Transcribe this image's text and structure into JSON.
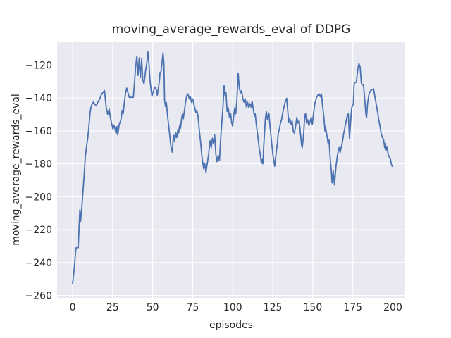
{
  "chart_data": {
    "type": "line",
    "title": "moving_average_rewards_eval of DDPG",
    "xlabel": "episodes",
    "ylabel": "moving_average_rewards_eval",
    "x_ticks": [
      0,
      25,
      50,
      75,
      100,
      125,
      150,
      175,
      200
    ],
    "y_ticks": [
      -120,
      -140,
      -160,
      -180,
      -200,
      -220,
      -240,
      -260
    ],
    "xlim": [
      -9.7,
      207.7
    ],
    "ylim": [
      -261.5,
      -105.7
    ],
    "grid": true,
    "legend_position": "none",
    "style": {
      "figure_background": "#ffffff",
      "plot_background": "#e9e9f2",
      "grid_color": "#ffffff",
      "line_color": "#4c72b0",
      "text_color": "#262626"
    },
    "series": [
      {
        "name": "moving_average_rewards_eval",
        "color": "#4c72b0",
        "points": [
          [
            0,
            -253
          ],
          [
            1,
            -244
          ],
          [
            2,
            -232
          ],
          [
            2.3,
            -231
          ],
          [
            3.5,
            -231
          ],
          [
            4.5,
            -208
          ],
          [
            5,
            -215
          ],
          [
            6,
            -203
          ],
          [
            7,
            -190
          ],
          [
            8,
            -175
          ],
          [
            8.9,
            -168
          ],
          [
            9.4,
            -165
          ],
          [
            10,
            -159
          ],
          [
            10.9,
            -149
          ],
          [
            11.4,
            -146
          ],
          [
            12,
            -144
          ],
          [
            13,
            -142.5
          ],
          [
            14,
            -144
          ],
          [
            14.8,
            -144.7
          ],
          [
            15.5,
            -143
          ],
          [
            17,
            -140.4
          ],
          [
            18,
            -138
          ],
          [
            19,
            -136.5
          ],
          [
            19.9,
            -135.5
          ],
          [
            20.5,
            -141
          ],
          [
            21,
            -146
          ],
          [
            21.9,
            -150
          ],
          [
            22.8,
            -146.8
          ],
          [
            23.6,
            -152
          ],
          [
            24.5,
            -156
          ],
          [
            25.2,
            -158.9
          ],
          [
            25.8,
            -156.5
          ],
          [
            26.5,
            -159
          ],
          [
            27.2,
            -161.7
          ],
          [
            27.7,
            -157.4
          ],
          [
            28.2,
            -162.4
          ],
          [
            29.1,
            -156
          ],
          [
            30.2,
            -153.2
          ],
          [
            30.9,
            -147.5
          ],
          [
            31.6,
            -149.6
          ],
          [
            32.4,
            -141.8
          ],
          [
            33.1,
            -136.8
          ],
          [
            33.8,
            -134
          ],
          [
            34.6,
            -136.8
          ],
          [
            35.3,
            -139.6
          ],
          [
            37.9,
            -139.6
          ],
          [
            38.7,
            -130
          ],
          [
            39.3,
            -122
          ],
          [
            40.1,
            -114.5
          ],
          [
            40.9,
            -126.3
          ],
          [
            41.6,
            -115.6
          ],
          [
            42.3,
            -127.7
          ],
          [
            43.1,
            -116.3
          ],
          [
            43.8,
            -129.1
          ],
          [
            44.6,
            -131.5
          ],
          [
            45.5,
            -124.1
          ],
          [
            46.3,
            -119.1
          ],
          [
            47,
            -112
          ],
          [
            47.8,
            -121.3
          ],
          [
            48.3,
            -129.1
          ],
          [
            49,
            -135
          ],
          [
            49.6,
            -139
          ],
          [
            50.2,
            -136.5
          ],
          [
            51,
            -134.5
          ],
          [
            51.5,
            -133.3
          ],
          [
            52.3,
            -135
          ],
          [
            52.9,
            -138.3
          ],
          [
            53.6,
            -134
          ],
          [
            54.3,
            -129
          ],
          [
            54.6,
            -124.5
          ],
          [
            55.2,
            -124
          ],
          [
            56,
            -117
          ],
          [
            56.5,
            -112.6
          ],
          [
            57,
            -119.1
          ],
          [
            57.4,
            -141.2
          ],
          [
            58,
            -145.2
          ],
          [
            58.6,
            -142.9
          ],
          [
            59.3,
            -151
          ],
          [
            60.4,
            -160.3
          ],
          [
            61.4,
            -169.8
          ],
          [
            62.3,
            -173
          ],
          [
            62.8,
            -164.8
          ],
          [
            63.3,
            -162.7
          ],
          [
            63.7,
            -166.3
          ],
          [
            64.5,
            -161.3
          ],
          [
            65,
            -164.1
          ],
          [
            65.8,
            -159.1
          ],
          [
            66.2,
            -161.3
          ],
          [
            66.9,
            -156.3
          ],
          [
            67.4,
            -158.4
          ],
          [
            68.1,
            -152
          ],
          [
            68.7,
            -149.8
          ],
          [
            69.1,
            -152.7
          ],
          [
            70,
            -146.5
          ],
          [
            70.6,
            -142
          ],
          [
            71.3,
            -138.5
          ],
          [
            72.1,
            -137.5
          ],
          [
            72.8,
            -140.6
          ],
          [
            73.5,
            -139.2
          ],
          [
            74.3,
            -142.7
          ],
          [
            75,
            -140.6
          ],
          [
            75.8,
            -144.2
          ],
          [
            77,
            -148.9
          ],
          [
            77.6,
            -147.5
          ],
          [
            78.3,
            -151
          ],
          [
            79.2,
            -160.3
          ],
          [
            80,
            -167.4
          ],
          [
            80.7,
            -175.2
          ],
          [
            81.4,
            -180.1
          ],
          [
            81.9,
            -183
          ],
          [
            82.5,
            -180
          ],
          [
            83.3,
            -185.1
          ],
          [
            84.4,
            -178
          ],
          [
            85.1,
            -173
          ],
          [
            85.8,
            -166
          ],
          [
            86.6,
            -170.3
          ],
          [
            87.3,
            -164.5
          ],
          [
            88,
            -167.5
          ],
          [
            88.7,
            -162.5
          ],
          [
            89.5,
            -174.5
          ],
          [
            90.2,
            -178.7
          ],
          [
            90.9,
            -175
          ],
          [
            91.7,
            -178
          ],
          [
            92.4,
            -166
          ],
          [
            93.1,
            -156
          ],
          [
            93.9,
            -145.4
          ],
          [
            94.6,
            -132.6
          ],
          [
            95.3,
            -139
          ],
          [
            95.8,
            -136.8
          ],
          [
            96.5,
            -148.2
          ],
          [
            97.2,
            -146.1
          ],
          [
            98,
            -151.8
          ],
          [
            98.7,
            -149.6
          ],
          [
            99.4,
            -155.3
          ],
          [
            99.9,
            -157
          ],
          [
            100.5,
            -151.8
          ],
          [
            101.2,
            -146.1
          ],
          [
            101.9,
            -149.6
          ],
          [
            102.6,
            -141
          ],
          [
            103.4,
            -124.8
          ],
          [
            104.1,
            -134
          ],
          [
            104.9,
            -136.9
          ],
          [
            105.6,
            -135.5
          ],
          [
            106.3,
            -140.4
          ],
          [
            107,
            -142.5
          ],
          [
            107.8,
            -140.4
          ],
          [
            108.5,
            -145.4
          ],
          [
            109.3,
            -142.5
          ],
          [
            110,
            -146
          ],
          [
            110.7,
            -143.5
          ],
          [
            111.4,
            -145.5
          ],
          [
            112.1,
            -142
          ],
          [
            112.5,
            -144.6
          ],
          [
            113.1,
            -148.2
          ],
          [
            113.5,
            -151
          ],
          [
            114,
            -149.6
          ],
          [
            114.7,
            -156
          ],
          [
            115.3,
            -160.3
          ],
          [
            116,
            -166
          ],
          [
            116.4,
            -169.6
          ],
          [
            117.2,
            -174.6
          ],
          [
            117.9,
            -179.6
          ],
          [
            118.3,
            -177.4
          ],
          [
            118.8,
            -180
          ],
          [
            119.3,
            -170.3
          ],
          [
            120,
            -158.9
          ],
          [
            120.4,
            -152.5
          ],
          [
            121,
            -148.2
          ],
          [
            121.6,
            -153.2
          ],
          [
            122.2,
            -150.3
          ],
          [
            122.6,
            -149.2
          ],
          [
            123.3,
            -157.4
          ],
          [
            123.9,
            -163.1
          ],
          [
            124.5,
            -168.9
          ],
          [
            125.1,
            -174.6
          ],
          [
            125.8,
            -178.9
          ],
          [
            126.2,
            -181.5
          ],
          [
            126.9,
            -175.3
          ],
          [
            127.4,
            -171
          ],
          [
            127.9,
            -167.4
          ],
          [
            128.4,
            -161.7
          ],
          [
            129.1,
            -158.9
          ],
          [
            129.8,
            -155.3
          ],
          [
            130.5,
            -153.2
          ],
          [
            131.2,
            -148.9
          ],
          [
            132,
            -145.4
          ],
          [
            133,
            -141.5
          ],
          [
            133.7,
            -140.2
          ],
          [
            134.3,
            -147
          ],
          [
            134.9,
            -154.6
          ],
          [
            135.6,
            -152.5
          ],
          [
            136.4,
            -156
          ],
          [
            137.1,
            -154
          ],
          [
            137.8,
            -160.3
          ],
          [
            138.5,
            -161.5
          ],
          [
            139.3,
            -156.7
          ],
          [
            140,
            -151.8
          ],
          [
            140.7,
            -155.3
          ],
          [
            141.5,
            -153.9
          ],
          [
            142.2,
            -161
          ],
          [
            143,
            -168.8
          ],
          [
            143.4,
            -170.2
          ],
          [
            144.3,
            -161.7
          ],
          [
            145,
            -150.4
          ],
          [
            145.5,
            -149.6
          ],
          [
            146.1,
            -155.3
          ],
          [
            146.8,
            -153.2
          ],
          [
            147.5,
            -156.7
          ],
          [
            148.3,
            -154.6
          ],
          [
            149,
            -151.8
          ],
          [
            149.7,
            -156
          ],
          [
            150.5,
            -149
          ],
          [
            151.3,
            -143.5
          ],
          [
            152.2,
            -140
          ],
          [
            153,
            -138.5
          ],
          [
            154,
            -137.5
          ],
          [
            154.7,
            -139.3
          ],
          [
            155.4,
            -137.6
          ],
          [
            156.1,
            -144.7
          ],
          [
            156.9,
            -151.8
          ],
          [
            157.6,
            -160.3
          ],
          [
            157.9,
            -157.4
          ],
          [
            159.1,
            -164.5
          ],
          [
            159.5,
            -167.4
          ],
          [
            160.1,
            -165.2
          ],
          [
            161,
            -178.7
          ],
          [
            161.6,
            -184.4
          ],
          [
            162,
            -191.5
          ],
          [
            162.8,
            -184.4
          ],
          [
            163.5,
            -192.8
          ],
          [
            164.5,
            -181.6
          ],
          [
            165.4,
            -174.5
          ],
          [
            166.4,
            -170.2
          ],
          [
            167.1,
            -173.1
          ],
          [
            168,
            -168.8
          ],
          [
            168.6,
            -166
          ],
          [
            169.3,
            -161.7
          ],
          [
            170,
            -158.2
          ],
          [
            170.7,
            -154.6
          ],
          [
            171.5,
            -151
          ],
          [
            172.2,
            -149.6
          ],
          [
            172.9,
            -164.5
          ],
          [
            173.4,
            -157.4
          ],
          [
            173.9,
            -150.4
          ],
          [
            174.3,
            -146.1
          ],
          [
            174.8,
            -144.7
          ],
          [
            175.3,
            -144
          ],
          [
            175.8,
            -131.2
          ],
          [
            176.5,
            -130.6
          ],
          [
            177.2,
            -130.4
          ],
          [
            178.1,
            -122.7
          ],
          [
            178.8,
            -119.1
          ],
          [
            179.6,
            -121.3
          ],
          [
            180.3,
            -130.6
          ],
          [
            180.7,
            -131.9
          ],
          [
            181.3,
            -131.9
          ],
          [
            181.7,
            -132.6
          ],
          [
            182.4,
            -140.4
          ],
          [
            183.2,
            -150.4
          ],
          [
            183.6,
            -151.8
          ],
          [
            184.2,
            -143.3
          ],
          [
            185.1,
            -137.6
          ],
          [
            186.1,
            -135.5
          ],
          [
            187.1,
            -134.8
          ],
          [
            188,
            -134.5
          ],
          [
            189,
            -140.4
          ],
          [
            189.8,
            -144.7
          ],
          [
            190.5,
            -148.9
          ],
          [
            191.2,
            -153.2
          ],
          [
            192,
            -157.4
          ],
          [
            192.7,
            -161.7
          ],
          [
            193.4,
            -163.8
          ],
          [
            194.2,
            -165.2
          ],
          [
            194.9,
            -170.2
          ],
          [
            195.3,
            -167.4
          ],
          [
            195.9,
            -171.6
          ],
          [
            196.4,
            -170
          ],
          [
            197.1,
            -174.5
          ],
          [
            197.8,
            -175.9
          ],
          [
            198.5,
            -177.3
          ],
          [
            199.2,
            -180.9
          ],
          [
            199.7,
            -181.6
          ]
        ]
      }
    ]
  }
}
